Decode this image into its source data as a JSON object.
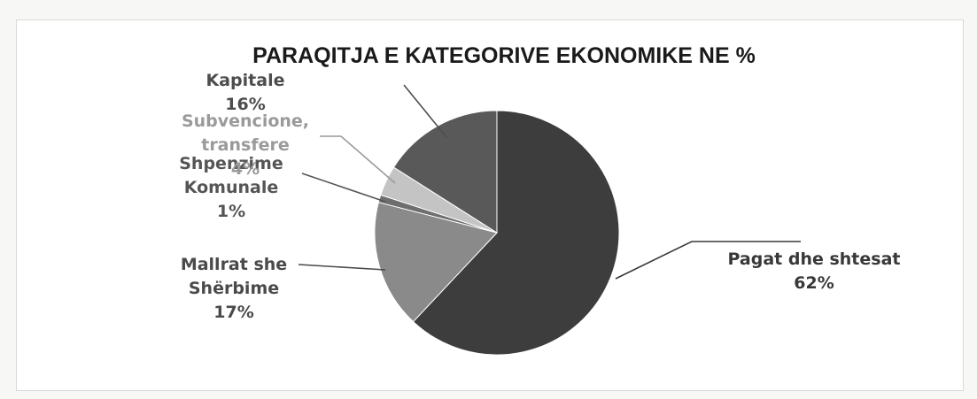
{
  "chart_data": {
    "type": "pie",
    "title": "PARAQITJA E KATEGORIVE EKONOMIKE NE %",
    "slices": [
      {
        "name": "Pagat dhe shtesat",
        "label_lines": [
          "Pagat dhe shtesat"
        ],
        "percent_label": "62%",
        "value": 62,
        "color": "#3d3d3d",
        "label_color": "#383838"
      },
      {
        "name": "Mallrat she Shërbime",
        "label_lines": [
          "Mallrat she",
          "Shërbime"
        ],
        "percent_label": "17%",
        "value": 17,
        "color": "#8a8a8a",
        "label_color": "#4a4a4a"
      },
      {
        "name": "Shpenzime Komunale",
        "label_lines": [
          "Shpenzime",
          "Komunale"
        ],
        "percent_label": "1%",
        "value": 1,
        "color": "#6e6e6e",
        "label_color": "#555555"
      },
      {
        "name": "Subvencione, transfere",
        "label_lines": [
          "Subvencione,",
          "transfere"
        ],
        "percent_label": "4%",
        "value": 4,
        "color": "#c4c4c4",
        "label_color": "#9a9a9a"
      },
      {
        "name": "Kapitale",
        "label_lines": [
          "Kapitale"
        ],
        "percent_label": "16%",
        "value": 16,
        "color": "#595959",
        "label_color": "#4d4d4d"
      }
    ]
  }
}
